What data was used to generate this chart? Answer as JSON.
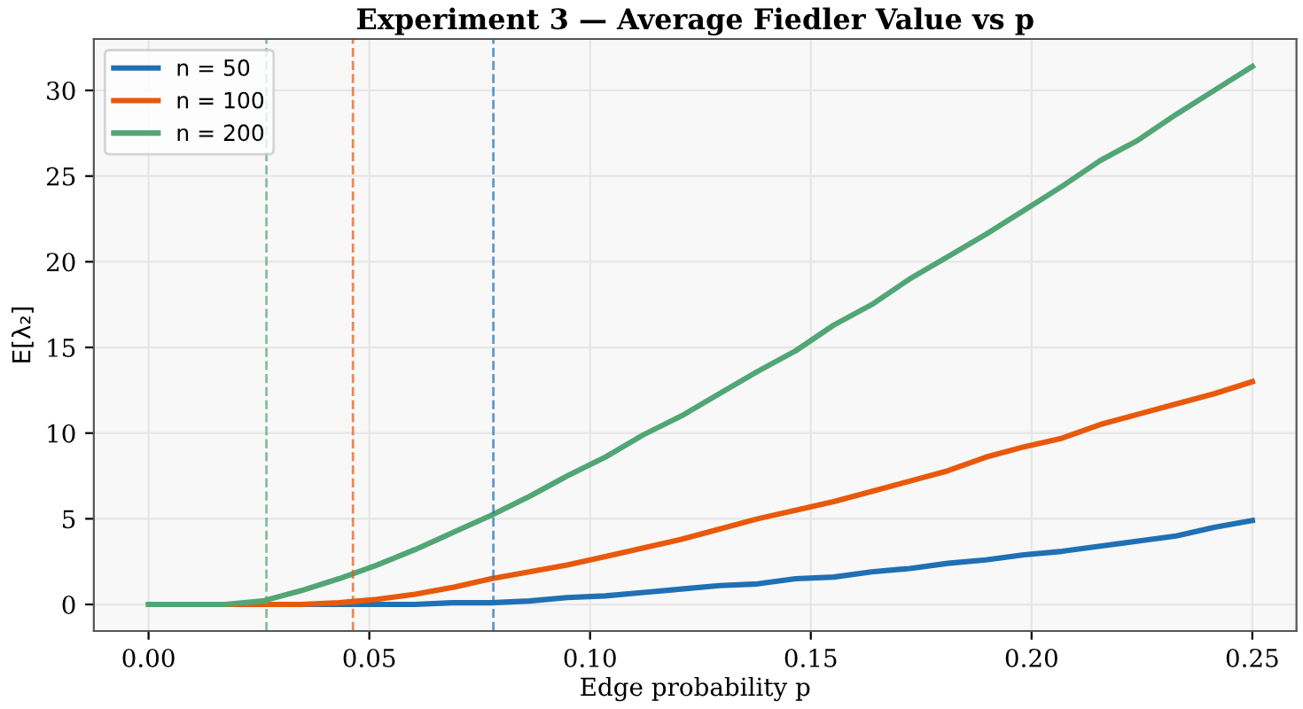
{
  "chart_data": {
    "type": "line",
    "title": "Experiment 3 — Average Fiedler Value vs p",
    "xlabel": "Edge probability p",
    "ylabel": "E[λ₂]",
    "x": [
      0,
      0.00862,
      0.01724,
      0.02586,
      0.03448,
      0.0431,
      0.05172,
      0.06034,
      0.06897,
      0.07759,
      0.08621,
      0.09483,
      0.10345,
      0.11207,
      0.12069,
      0.12931,
      0.13793,
      0.14655,
      0.15517,
      0.16379,
      0.17241,
      0.18103,
      0.18966,
      0.19828,
      0.2069,
      0.21552,
      0.22414,
      0.23276,
      0.24138,
      0.25
    ],
    "series": [
      {
        "name": "n = 50",
        "color": "#2070b4",
        "values": [
          null,
          null,
          null,
          0,
          0,
          0,
          0,
          0,
          0.1,
          0.1,
          0.2,
          0.4,
          0.5,
          0.7,
          0.9,
          1.1,
          1.2,
          1.5,
          1.6,
          1.9,
          2.1,
          2.4,
          2.6,
          2.9,
          3.1,
          3.4,
          3.7,
          4.0,
          4.5,
          4.9
        ]
      },
      {
        "name": "n = 100",
        "color": "#e8590c",
        "values": [
          0,
          0,
          0,
          0,
          0,
          0.1,
          0.3,
          0.6,
          1.0,
          1.5,
          1.9,
          2.3,
          2.8,
          3.3,
          3.8,
          4.4,
          5.0,
          5.5,
          6.0,
          6.6,
          7.2,
          7.8,
          8.6,
          9.2,
          9.7,
          10.5,
          11.1,
          11.7,
          12.3,
          13.0
        ]
      },
      {
        "name": "n = 200",
        "color": "#52a675",
        "values": [
          0,
          0,
          0,
          0.2,
          0.8,
          1.5,
          2.3,
          3.2,
          4.2,
          5.2,
          6.3,
          7.5,
          8.6,
          9.9,
          11.0,
          12.3,
          13.6,
          14.8,
          16.3,
          17.5,
          19.0,
          20.3,
          21.6,
          23.0,
          24.4,
          25.9,
          27.1,
          28.6,
          30.0,
          31.4
        ]
      }
    ],
    "ref_lines": [
      {
        "axis": "x",
        "value": 0.0267,
        "color": "#52a675",
        "line_style": "dashed"
      },
      {
        "axis": "x",
        "value": 0.0463,
        "color": "#e8590c",
        "line_style": "dashed"
      },
      {
        "axis": "x",
        "value": 0.0781,
        "color": "#2070b4",
        "line_style": "dashed"
      }
    ],
    "xlim": [
      -0.0124,
      0.26
    ],
    "ylim": [
      -1.55,
      33.0
    ],
    "xticks": [
      {
        "value": 0,
        "label": "0.00"
      },
      {
        "value": 0.05,
        "label": "0.05"
      },
      {
        "value": 0.1,
        "label": "0.10"
      },
      {
        "value": 0.15,
        "label": "0.15"
      },
      {
        "value": 0.2,
        "label": "0.20"
      },
      {
        "value": 0.25,
        "label": "0.25"
      }
    ],
    "yticks": [
      0,
      5,
      10,
      15,
      20,
      25,
      30
    ],
    "grid": true,
    "legend": "top left",
    "marker": "none",
    "line_style": "solid"
  }
}
